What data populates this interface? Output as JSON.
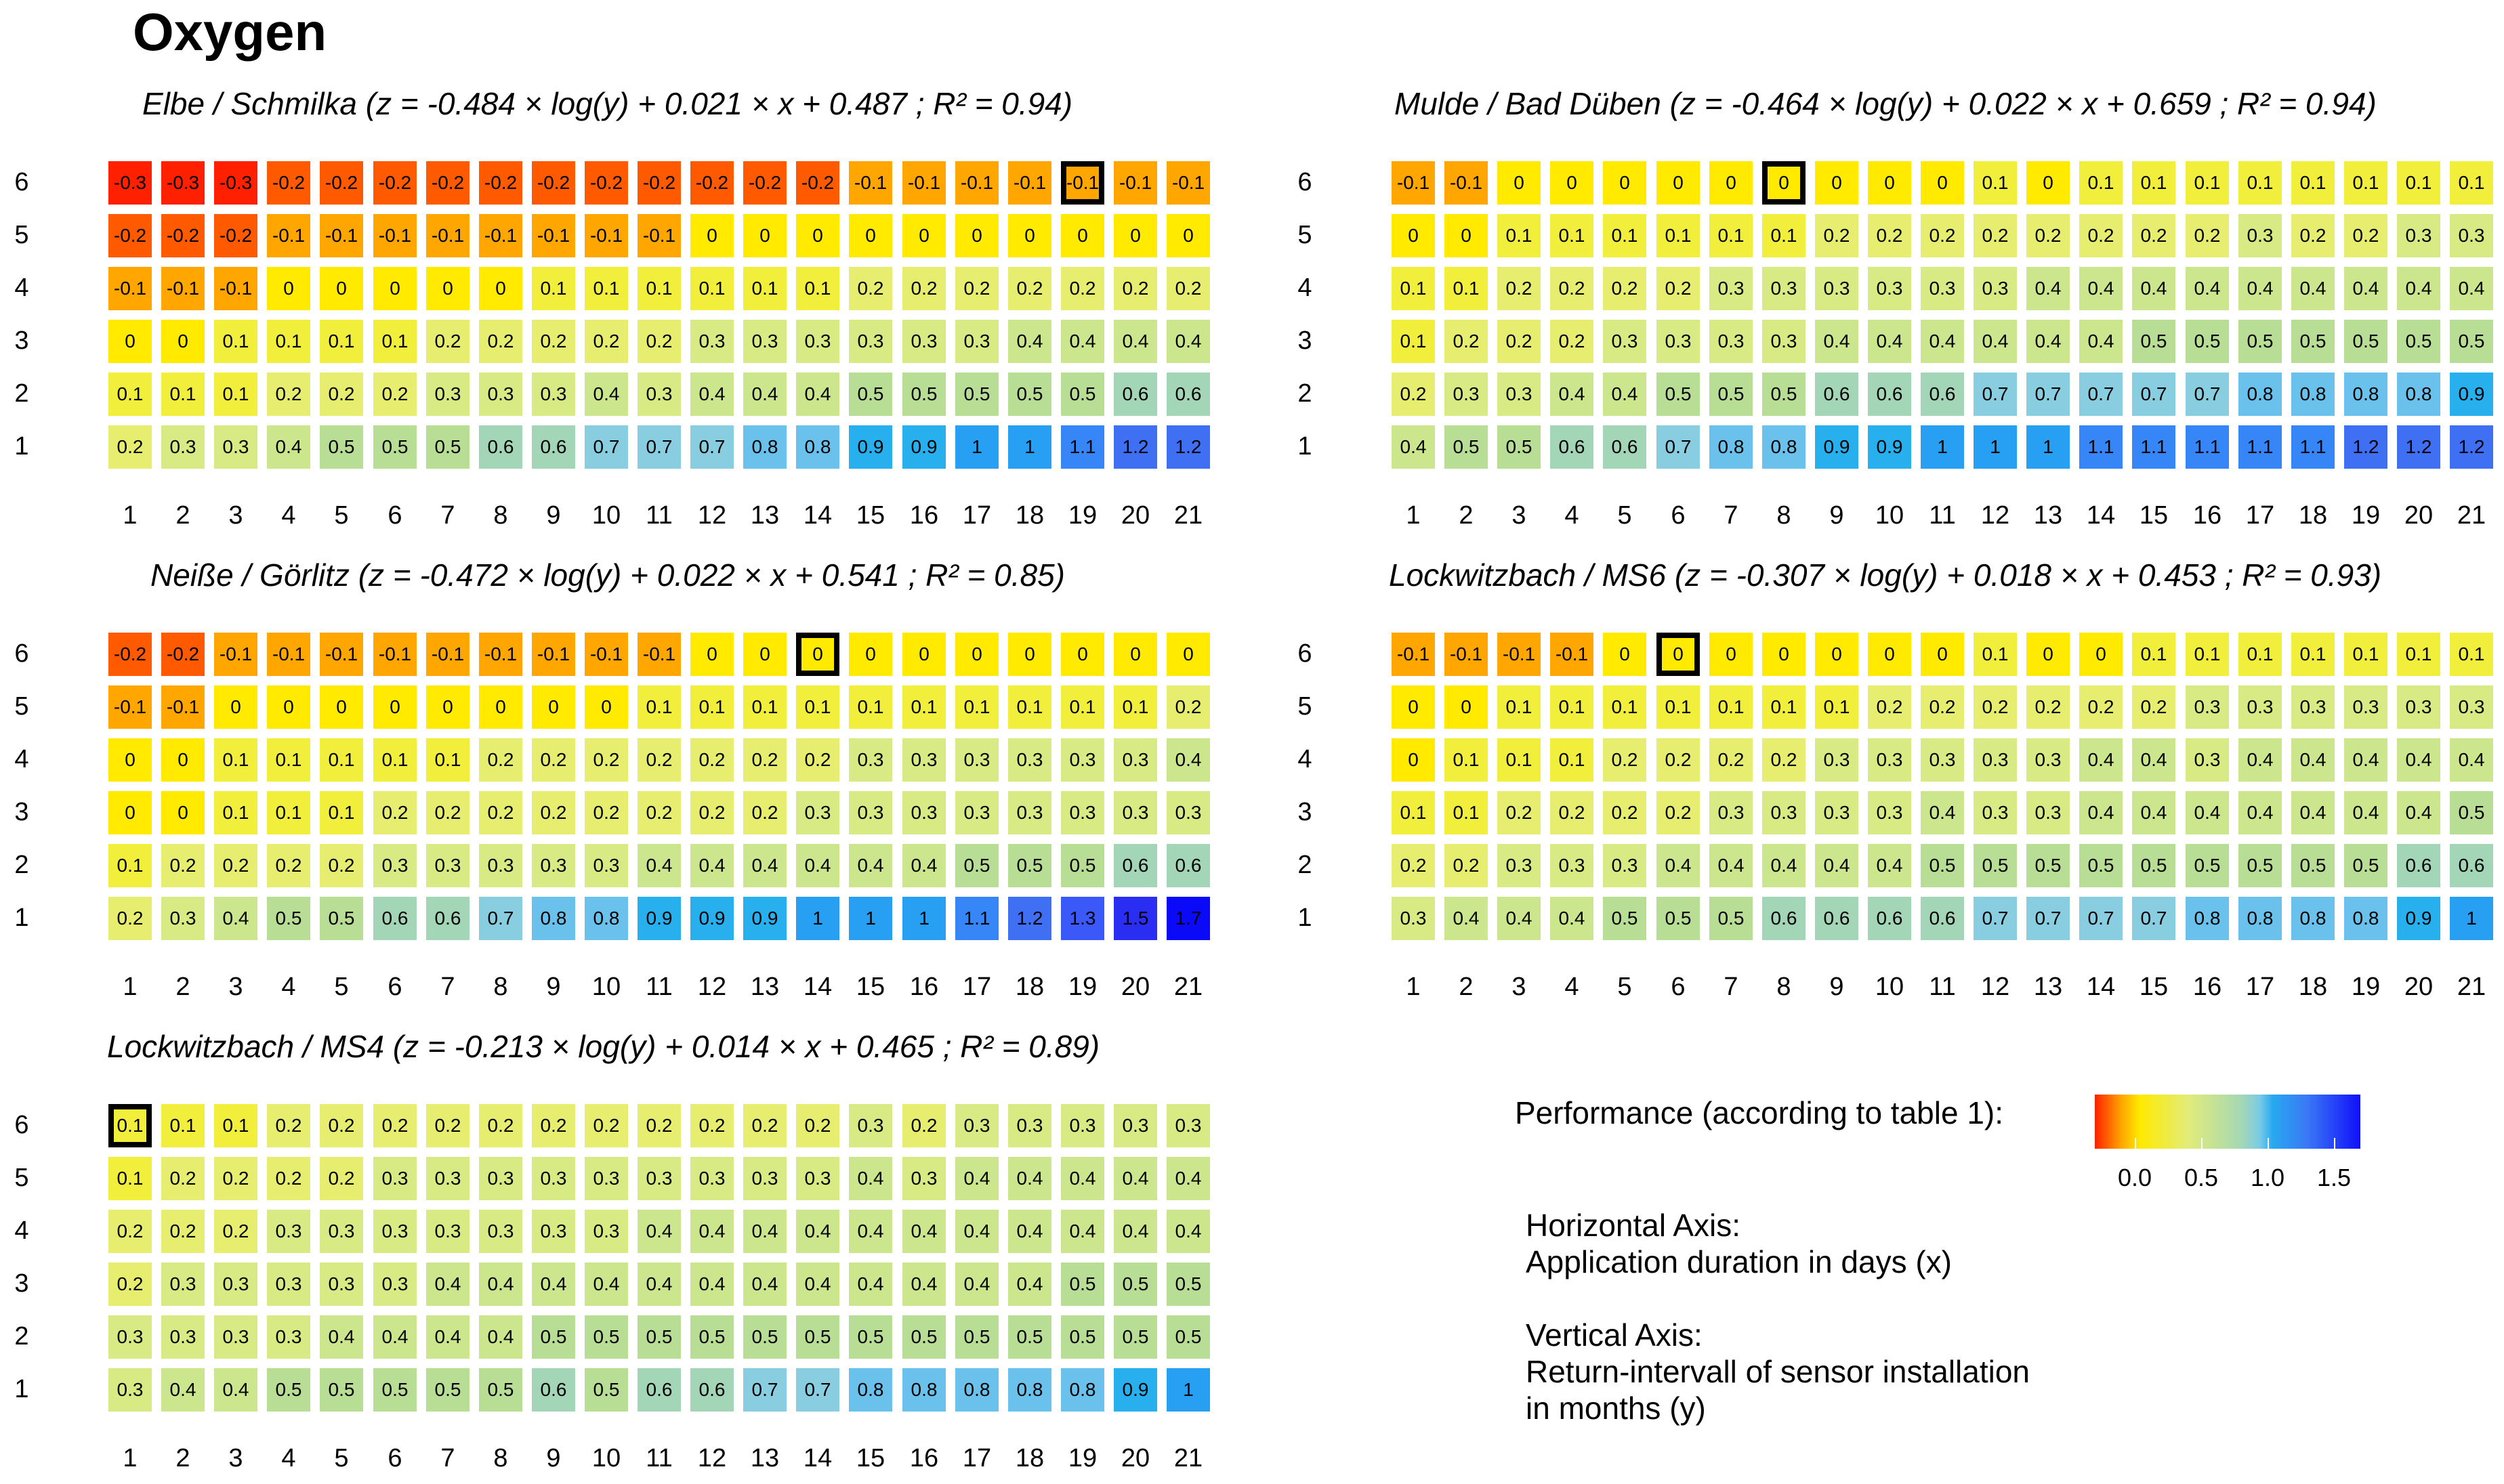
{
  "title": "Oxygen",
  "chart_data": {
    "type": "heatmap",
    "panels": [
      {
        "title": "Elbe / Schmilka  (z = -0.484 × log(y) + 0.021 × x + 0.487 ; R² = 0.94)",
        "x": [
          1,
          2,
          3,
          4,
          5,
          6,
          7,
          8,
          9,
          10,
          11,
          12,
          13,
          14,
          15,
          16,
          17,
          18,
          19,
          20,
          21
        ],
        "y": [
          6,
          5,
          4,
          3,
          2,
          1
        ],
        "values": [
          [
            -0.3,
            -0.3,
            -0.3,
            -0.2,
            -0.2,
            -0.2,
            -0.2,
            -0.2,
            -0.2,
            -0.2,
            -0.2,
            -0.2,
            -0.2,
            -0.2,
            -0.1,
            -0.1,
            -0.1,
            -0.1,
            -0.1,
            -0.1,
            -0.1
          ],
          [
            -0.2,
            -0.2,
            -0.2,
            -0.1,
            -0.1,
            -0.1,
            -0.1,
            -0.1,
            -0.1,
            -0.1,
            -0.1,
            0,
            0,
            0,
            0,
            0,
            0,
            0,
            0,
            0,
            0
          ],
          [
            -0.1,
            -0.1,
            -0.1,
            0,
            0,
            0,
            0,
            0,
            0.1,
            0.1,
            0.1,
            0.1,
            0.1,
            0.1,
            0.2,
            0.2,
            0.2,
            0.2,
            0.2,
            0.2,
            0.2
          ],
          [
            0,
            0,
            0.1,
            0.1,
            0.1,
            0.1,
            0.2,
            0.2,
            0.2,
            0.2,
            0.2,
            0.3,
            0.3,
            0.3,
            0.3,
            0.3,
            0.3,
            0.4,
            0.4,
            0.4,
            0.4
          ],
          [
            0.1,
            0.1,
            0.1,
            0.2,
            0.2,
            0.2,
            0.3,
            0.3,
            0.3,
            0.4,
            0.3,
            0.4,
            0.4,
            0.4,
            0.5,
            0.5,
            0.5,
            0.5,
            0.5,
            0.6,
            0.6
          ],
          [
            0.2,
            0.3,
            0.3,
            0.4,
            0.5,
            0.5,
            0.5,
            0.6,
            0.6,
            0.7,
            0.7,
            0.7,
            0.8,
            0.8,
            0.9,
            0.9,
            1,
            1,
            1.1,
            1.2,
            1.2
          ]
        ],
        "highlight": {
          "x": 19,
          "y": 6
        }
      },
      {
        "title": "Mulde / Bad Düben  (z = -0.464 × log(y) + 0.022 × x + 0.659 ; R² = 0.94)",
        "x": [
          1,
          2,
          3,
          4,
          5,
          6,
          7,
          8,
          9,
          10,
          11,
          12,
          13,
          14,
          15,
          16,
          17,
          18,
          19,
          20,
          21
        ],
        "y": [
          6,
          5,
          4,
          3,
          2,
          1
        ],
        "values": [
          [
            -0.1,
            -0.1,
            0,
            0,
            0,
            0,
            0,
            0,
            0,
            0,
            0,
            0.1,
            0,
            0.1,
            0.1,
            0.1,
            0.1,
            0.1,
            0.1,
            0.1,
            0.1
          ],
          [
            0,
            0,
            0.1,
            0.1,
            0.1,
            0.1,
            0.1,
            0.1,
            0.2,
            0.2,
            0.2,
            0.2,
            0.2,
            0.2,
            0.2,
            0.2,
            0.3,
            0.2,
            0.2,
            0.3,
            0.3
          ],
          [
            0.1,
            0.1,
            0.2,
            0.2,
            0.2,
            0.2,
            0.3,
            0.3,
            0.3,
            0.3,
            0.3,
            0.3,
            0.4,
            0.4,
            0.4,
            0.4,
            0.4,
            0.4,
            0.4,
            0.4,
            0.4
          ],
          [
            0.1,
            0.2,
            0.2,
            0.2,
            0.3,
            0.3,
            0.3,
            0.3,
            0.4,
            0.4,
            0.4,
            0.4,
            0.4,
            0.4,
            0.5,
            0.5,
            0.5,
            0.5,
            0.5,
            0.5,
            0.5
          ],
          [
            0.2,
            0.3,
            0.3,
            0.4,
            0.4,
            0.5,
            0.5,
            0.5,
            0.6,
            0.6,
            0.6,
            0.7,
            0.7,
            0.7,
            0.7,
            0.7,
            0.8,
            0.8,
            0.8,
            0.8,
            0.9
          ],
          [
            0.4,
            0.5,
            0.5,
            0.6,
            0.6,
            0.7,
            0.8,
            0.8,
            0.9,
            0.9,
            1,
            1,
            1,
            1.1,
            1.1,
            1.1,
            1.1,
            1.1,
            1.2,
            1.2,
            1.2
          ]
        ],
        "highlight": {
          "x": 8,
          "y": 6
        }
      },
      {
        "title": "Neiße / Görlitz  (z = -0.472 × log(y) + 0.022 × x + 0.541 ; R² = 0.85)",
        "x": [
          1,
          2,
          3,
          4,
          5,
          6,
          7,
          8,
          9,
          10,
          11,
          12,
          13,
          14,
          15,
          16,
          17,
          18,
          19,
          20,
          21
        ],
        "y": [
          6,
          5,
          4,
          3,
          2,
          1
        ],
        "values": [
          [
            -0.2,
            -0.2,
            -0.1,
            -0.1,
            -0.1,
            -0.1,
            -0.1,
            -0.1,
            -0.1,
            -0.1,
            -0.1,
            0,
            0,
            0,
            0,
            0,
            0,
            0,
            0,
            0,
            0
          ],
          [
            -0.1,
            -0.1,
            0,
            0,
            0,
            0,
            0,
            0,
            0,
            0,
            0.1,
            0.1,
            0.1,
            0.1,
            0.1,
            0.1,
            0.1,
            0.1,
            0.1,
            0.1,
            0.2
          ],
          [
            0,
            0,
            0.1,
            0.1,
            0.1,
            0.1,
            0.1,
            0.2,
            0.2,
            0.2,
            0.2,
            0.2,
            0.2,
            0.2,
            0.3,
            0.3,
            0.3,
            0.3,
            0.3,
            0.3,
            0.4
          ],
          [
            0,
            0,
            0.1,
            0.1,
            0.1,
            0.2,
            0.2,
            0.2,
            0.2,
            0.2,
            0.2,
            0.2,
            0.2,
            0.3,
            0.3,
            0.3,
            0.3,
            0.3,
            0.3,
            0.3,
            0.3
          ],
          [
            0.1,
            0.2,
            0.2,
            0.2,
            0.2,
            0.3,
            0.3,
            0.3,
            0.3,
            0.3,
            0.4,
            0.4,
            0.4,
            0.4,
            0.4,
            0.4,
            0.5,
            0.5,
            0.5,
            0.6,
            0.6
          ],
          [
            0.2,
            0.3,
            0.4,
            0.5,
            0.5,
            0.6,
            0.6,
            0.7,
            0.8,
            0.8,
            0.9,
            0.9,
            0.9,
            1,
            1,
            1,
            1.1,
            1.2,
            1.3,
            1.5,
            1.7
          ]
        ],
        "highlight": {
          "x": 14,
          "y": 6
        }
      },
      {
        "title": "Lockwitzbach / MS6  (z = -0.307 × log(y) + 0.018 × x + 0.453 ; R² = 0.93)",
        "x": [
          1,
          2,
          3,
          4,
          5,
          6,
          7,
          8,
          9,
          10,
          11,
          12,
          13,
          14,
          15,
          16,
          17,
          18,
          19,
          20,
          21
        ],
        "y": [
          6,
          5,
          4,
          3,
          2,
          1
        ],
        "values": [
          [
            -0.1,
            -0.1,
            -0.1,
            -0.1,
            0,
            0,
            0,
            0,
            0,
            0,
            0,
            0.1,
            0,
            0,
            0.1,
            0.1,
            0.1,
            0.1,
            0.1,
            0.1,
            0.1
          ],
          [
            0,
            0,
            0.1,
            0.1,
            0.1,
            0.1,
            0.1,
            0.1,
            0.1,
            0.2,
            0.2,
            0.2,
            0.2,
            0.2,
            0.2,
            0.3,
            0.3,
            0.3,
            0.3,
            0.3,
            0.3
          ],
          [
            0,
            0.1,
            0.1,
            0.1,
            0.2,
            0.2,
            0.2,
            0.2,
            0.3,
            0.3,
            0.3,
            0.3,
            0.3,
            0.4,
            0.4,
            0.3,
            0.4,
            0.4,
            0.4,
            0.4,
            0.4
          ],
          [
            0.1,
            0.1,
            0.2,
            0.2,
            0.2,
            0.2,
            0.3,
            0.3,
            0.3,
            0.3,
            0.4,
            0.3,
            0.3,
            0.4,
            0.4,
            0.4,
            0.4,
            0.4,
            0.4,
            0.4,
            0.5
          ],
          [
            0.2,
            0.2,
            0.3,
            0.3,
            0.3,
            0.4,
            0.4,
            0.4,
            0.4,
            0.4,
            0.5,
            0.5,
            0.5,
            0.5,
            0.5,
            0.5,
            0.5,
            0.5,
            0.5,
            0.6,
            0.6
          ],
          [
            0.3,
            0.4,
            0.4,
            0.4,
            0.5,
            0.5,
            0.5,
            0.6,
            0.6,
            0.6,
            0.6,
            0.7,
            0.7,
            0.7,
            0.7,
            0.8,
            0.8,
            0.8,
            0.8,
            0.9,
            1
          ]
        ],
        "highlight": {
          "x": 6,
          "y": 6
        }
      },
      {
        "title": "Lockwitzbach / MS4  (z = -0.213 × log(y) + 0.014 × x + 0.465 ; R² = 0.89)",
        "x": [
          1,
          2,
          3,
          4,
          5,
          6,
          7,
          8,
          9,
          10,
          11,
          12,
          13,
          14,
          15,
          16,
          17,
          18,
          19,
          20,
          21
        ],
        "y": [
          6,
          5,
          4,
          3,
          2,
          1
        ],
        "values": [
          [
            0.1,
            0.1,
            0.1,
            0.2,
            0.2,
            0.2,
            0.2,
            0.2,
            0.2,
            0.2,
            0.2,
            0.2,
            0.2,
            0.2,
            0.3,
            0.2,
            0.3,
            0.3,
            0.3,
            0.3,
            0.3
          ],
          [
            0.1,
            0.2,
            0.2,
            0.2,
            0.2,
            0.3,
            0.3,
            0.3,
            0.3,
            0.3,
            0.3,
            0.3,
            0.3,
            0.3,
            0.4,
            0.3,
            0.4,
            0.4,
            0.4,
            0.4,
            0.4
          ],
          [
            0.2,
            0.2,
            0.2,
            0.3,
            0.3,
            0.3,
            0.3,
            0.3,
            0.3,
            0.3,
            0.4,
            0.4,
            0.4,
            0.4,
            0.4,
            0.4,
            0.4,
            0.4,
            0.4,
            0.4,
            0.4
          ],
          [
            0.2,
            0.3,
            0.3,
            0.3,
            0.3,
            0.3,
            0.4,
            0.4,
            0.4,
            0.4,
            0.4,
            0.4,
            0.4,
            0.4,
            0.4,
            0.4,
            0.4,
            0.4,
            0.5,
            0.5,
            0.5
          ],
          [
            0.3,
            0.3,
            0.3,
            0.3,
            0.4,
            0.4,
            0.4,
            0.4,
            0.5,
            0.5,
            0.5,
            0.5,
            0.5,
            0.5,
            0.5,
            0.5,
            0.5,
            0.5,
            0.5,
            0.5,
            0.5
          ],
          [
            0.3,
            0.4,
            0.4,
            0.5,
            0.5,
            0.5,
            0.5,
            0.5,
            0.6,
            0.5,
            0.6,
            0.6,
            0.7,
            0.7,
            0.8,
            0.8,
            0.8,
            0.8,
            0.8,
            0.9,
            1
          ]
        ],
        "highlight": {
          "x": 1,
          "y": 6
        }
      }
    ],
    "legend": {
      "title": "Performance (according to table 1):",
      "ticks": [
        "0.0",
        "0.5",
        "1.0",
        "1.5"
      ],
      "range": [
        -0.3,
        1.7
      ],
      "colors": {
        "-0.3": "#ff2000",
        "-0.2": "#ff5a00",
        "-0.1": "#ffa600",
        "0": "#ffea00",
        "0.1": "#f2ef3c",
        "0.2": "#e7ee6f",
        "0.3": "#d7ea83",
        "0.4": "#cbe68c",
        "0.5": "#b8de96",
        "0.6": "#a3d6b6",
        "0.7": "#89cde0",
        "0.8": "#6ac2ec",
        "0.9": "#28afee",
        "1.0": "#279ff3",
        "1.1": "#3786f8",
        "1.2": "#3f6ff3",
        "1.3": "#3b59f8",
        "1.5": "#2a2ef3",
        "1.7": "#0a0af8"
      }
    }
  },
  "notes": {
    "horizontal_title": "Horizontal Axis:",
    "horizontal_desc": "Application duration in days (x)",
    "vertical_title": "Vertical Axis:",
    "vertical_desc_1": "Return-intervall of sensor installation",
    "vertical_desc_2": "in months (y)"
  }
}
